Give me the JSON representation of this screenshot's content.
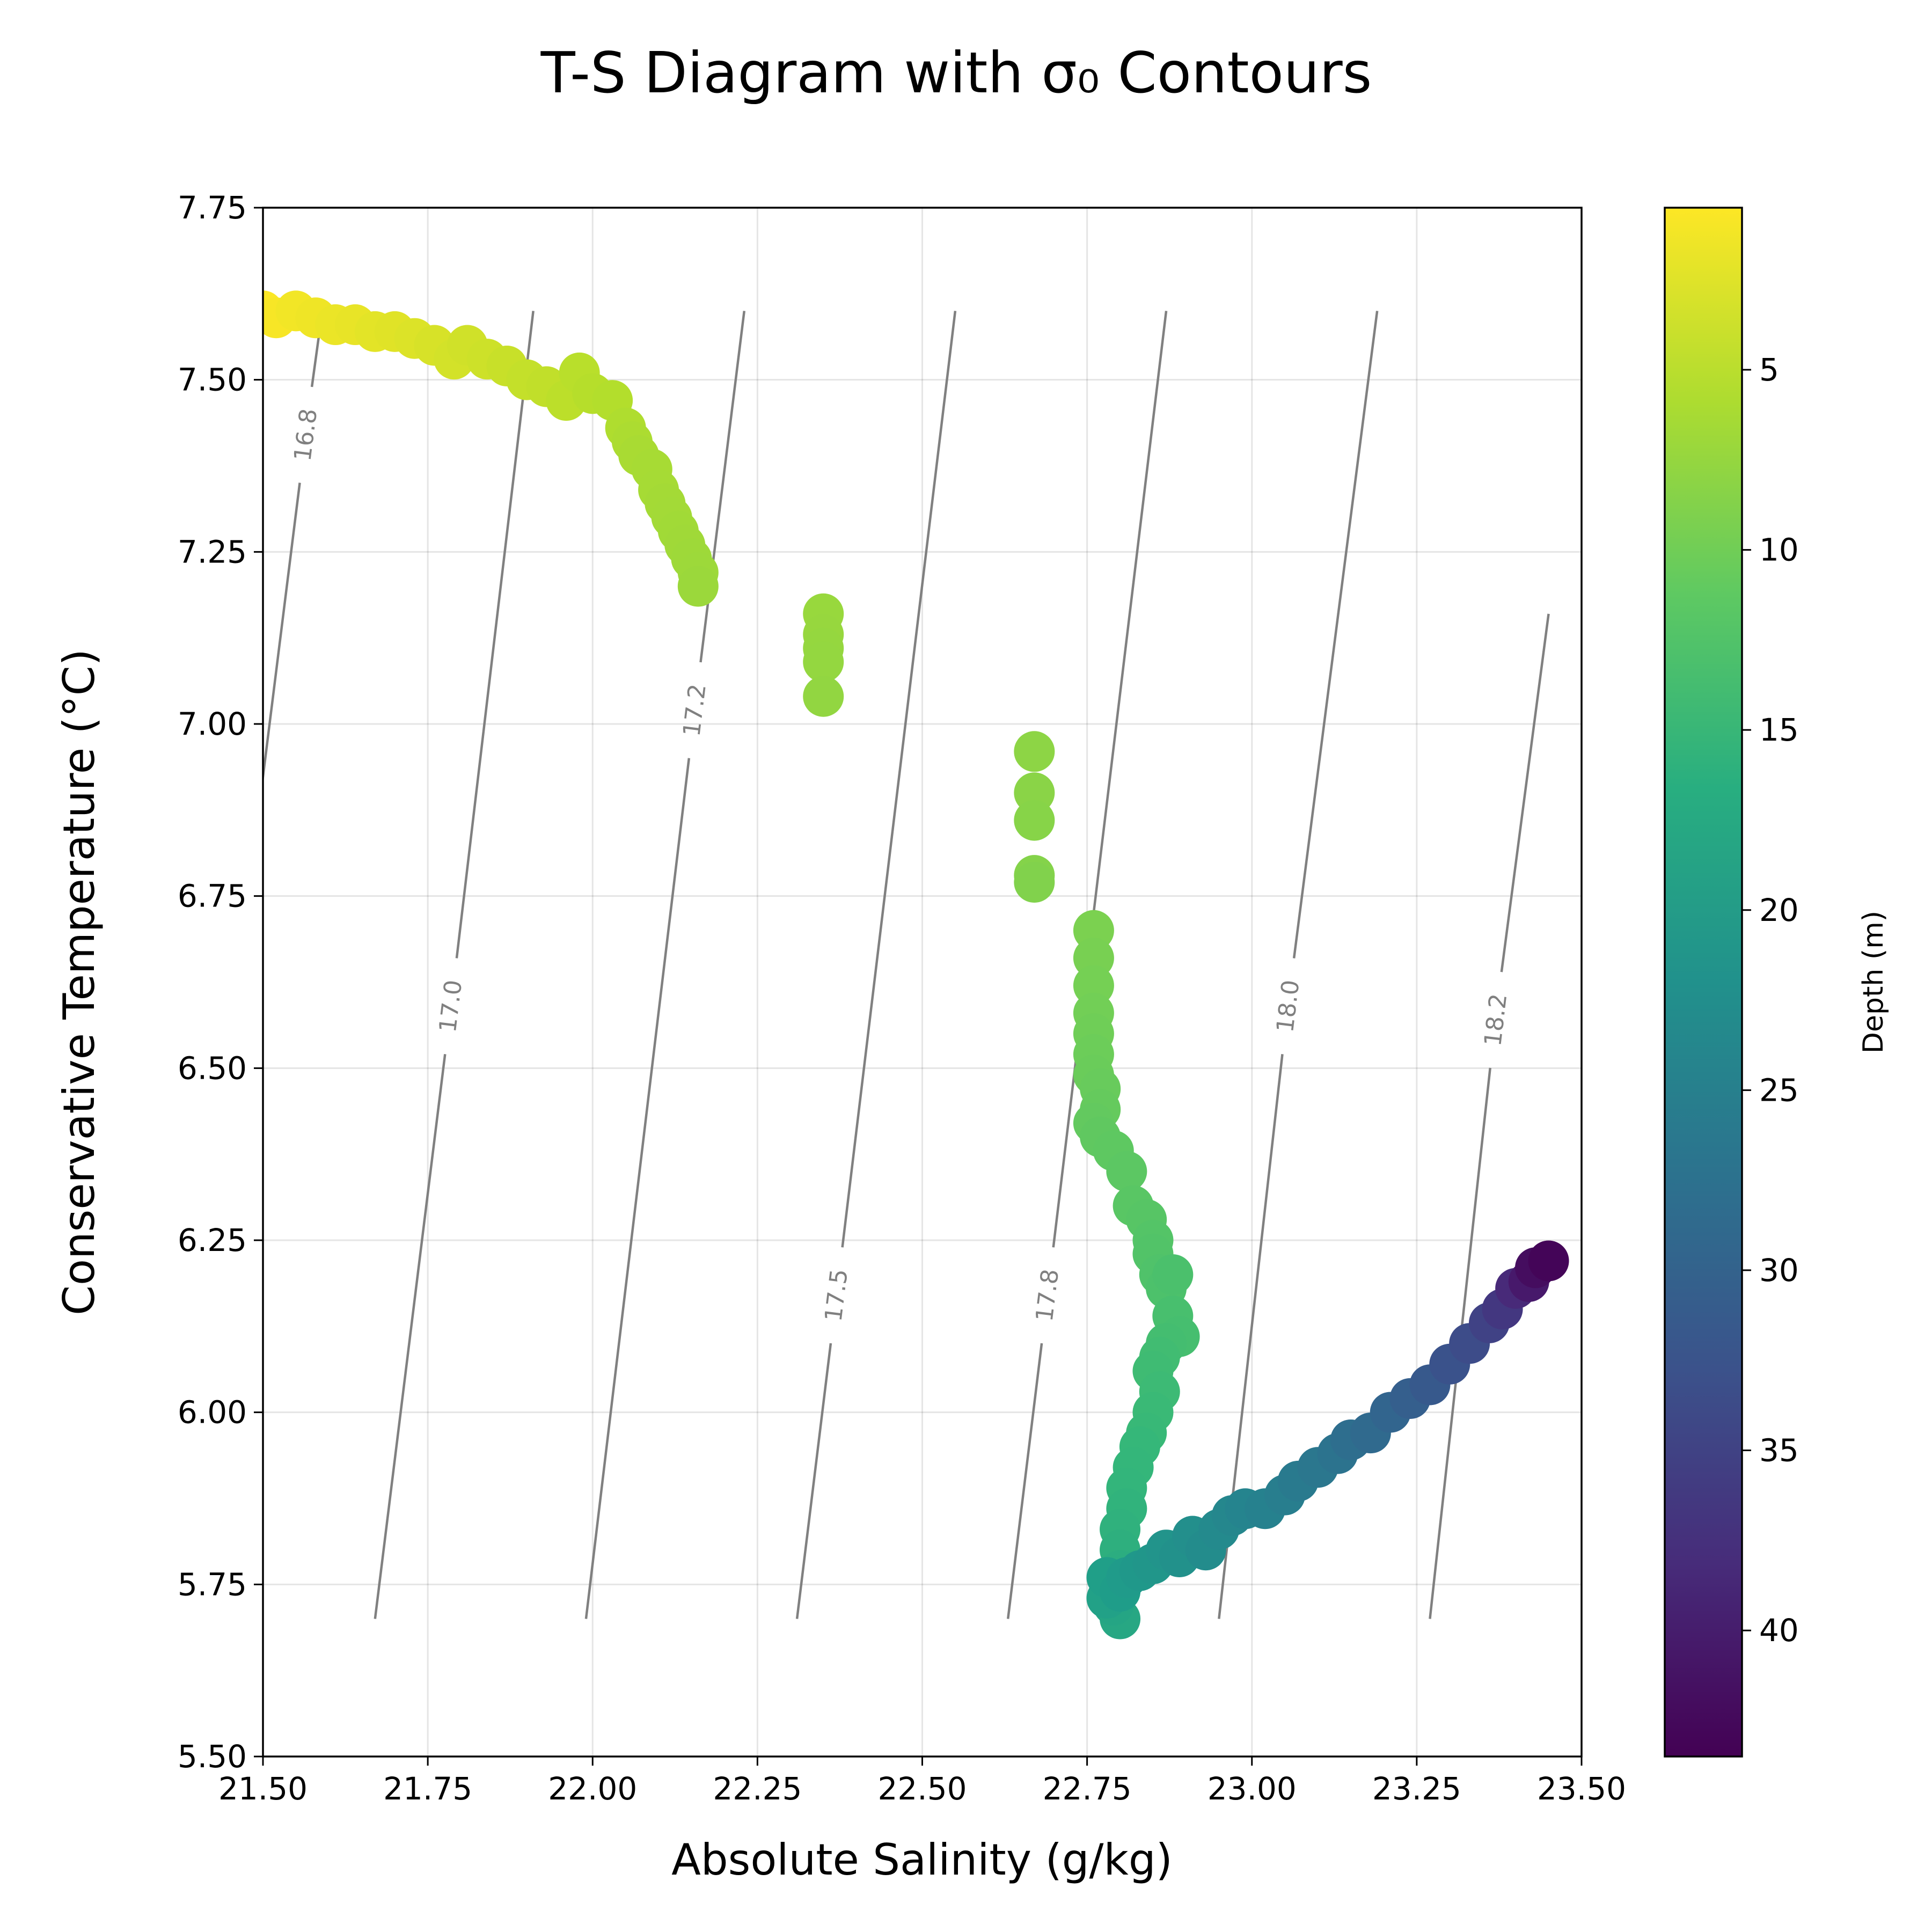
{
  "chart_data": {
    "type": "scatter",
    "title": "T-S Diagram with σ₀ Contours",
    "xlabel": "Absolute Salinity (g/kg)",
    "ylabel": "Conservative Temperature (°C)",
    "xlim": [
      21.5,
      23.5
    ],
    "ylim": [
      5.5,
      7.75
    ],
    "xticks": [
      21.5,
      21.75,
      22.0,
      22.25,
      22.5,
      22.75,
      23.0,
      23.25,
      23.5
    ],
    "yticks": [
      5.5,
      5.75,
      6.0,
      6.25,
      6.5,
      6.75,
      7.0,
      7.25,
      7.5,
      7.75
    ],
    "xtick_labels": [
      "21.50",
      "21.75",
      "22.00",
      "22.25",
      "22.50",
      "22.75",
      "23.00",
      "23.25",
      "23.50"
    ],
    "ytick_labels": [
      "5.50",
      "5.75",
      "6.00",
      "6.25",
      "6.50",
      "6.75",
      "7.00",
      "7.25",
      "7.50",
      "7.75"
    ],
    "grid": true,
    "colorbar": {
      "label": "Depth (m)",
      "colormap": "viridis",
      "reversed_axis": true,
      "range": [
        0.5,
        43.5
      ],
      "ticks": [
        5,
        10,
        15,
        20,
        25,
        30,
        35,
        40
      ],
      "tick_labels": [
        "5",
        "10",
        "15",
        "20",
        "25",
        "30",
        "35",
        "40"
      ]
    },
    "contours": {
      "color": "#808080",
      "lines": [
        {
          "label": "16.8",
          "s_bottom": 21.34,
          "s_top": 21.59,
          "t_bottom": 5.7,
          "t_top": 7.6,
          "label_s": 21.565,
          "label_t": 7.42
        },
        {
          "label": "17.0",
          "s_bottom": 21.67,
          "s_top": 21.91,
          "t_bottom": 5.7,
          "t_top": 7.6,
          "label_s": 21.785,
          "label_t": 6.59
        },
        {
          "label": "17.2",
          "s_bottom": 21.99,
          "s_top": 22.23,
          "t_bottom": 5.7,
          "t_top": 7.6,
          "label_s": 22.155,
          "label_t": 7.02
        },
        {
          "label": "17.5",
          "s_bottom": 22.31,
          "s_top": 22.55,
          "t_bottom": 5.7,
          "t_top": 7.6,
          "label_s": 22.37,
          "label_t": 6.17
        },
        {
          "label": "17.8",
          "s_bottom": 22.63,
          "s_top": 22.87,
          "t_bottom": 5.7,
          "t_top": 7.6,
          "label_s": 22.69,
          "label_t": 6.17
        },
        {
          "label": "18.0",
          "s_bottom": 22.95,
          "s_top": 23.19,
          "t_bottom": 5.7,
          "t_top": 7.6,
          "label_s": 23.055,
          "label_t": 6.59
        },
        {
          "label": "18.2",
          "s_bottom": 23.27,
          "s_top": 23.45,
          "t_bottom": 5.7,
          "t_top": 7.16,
          "label_s": 23.37,
          "label_t": 6.57
        }
      ]
    },
    "series": [
      {
        "x": [
          21.5,
          21.52,
          21.55,
          21.58,
          21.61,
          21.64,
          21.67,
          21.7,
          21.73,
          21.76,
          21.79,
          21.81,
          21.84,
          21.87,
          21.9,
          21.93,
          21.96,
          21.98,
          22.0,
          22.03,
          22.05,
          22.06,
          22.07,
          22.09,
          22.1,
          22.11,
          22.12,
          22.13,
          22.14,
          22.15,
          22.16,
          22.16,
          22.35,
          22.35,
          22.35,
          22.35,
          22.35,
          22.67,
          22.67,
          22.67,
          22.67,
          22.67,
          22.76,
          22.76,
          22.76,
          22.76,
          22.76,
          22.76,
          22.76,
          22.77,
          22.77,
          22.76,
          22.77,
          22.79,
          22.81,
          22.82,
          22.84,
          22.85,
          22.85,
          22.86,
          22.87,
          22.88,
          22.88,
          22.89,
          22.87,
          22.86,
          22.85,
          22.86,
          22.85,
          22.84,
          22.83,
          22.82,
          22.81,
          22.81,
          22.8,
          22.8,
          22.8,
          22.8,
          22.8,
          22.79,
          22.79,
          22.78,
          22.78,
          22.8,
          22.81,
          22.83,
          22.85,
          22.87,
          22.89,
          22.91,
          22.93,
          22.95,
          22.97,
          22.99,
          23.02,
          23.05,
          23.07,
          23.1,
          23.13,
          23.15,
          23.18,
          23.21,
          23.24,
          23.27,
          23.3,
          23.33,
          23.36,
          23.38,
          23.4,
          23.42,
          23.43,
          23.45
        ],
        "y": [
          7.6,
          7.59,
          7.6,
          7.59,
          7.58,
          7.58,
          7.57,
          7.57,
          7.56,
          7.55,
          7.53,
          7.55,
          7.53,
          7.52,
          7.5,
          7.49,
          7.47,
          7.51,
          7.48,
          7.47,
          7.43,
          7.41,
          7.39,
          7.37,
          7.34,
          7.32,
          7.3,
          7.28,
          7.26,
          7.24,
          7.22,
          7.2,
          7.16,
          7.13,
          7.11,
          7.09,
          7.04,
          6.96,
          6.9,
          6.86,
          6.78,
          6.77,
          6.7,
          6.66,
          6.62,
          6.58,
          6.55,
          6.52,
          6.49,
          6.47,
          6.44,
          6.42,
          6.4,
          6.38,
          6.35,
          6.3,
          6.28,
          6.25,
          6.23,
          6.2,
          6.18,
          6.2,
          6.14,
          6.11,
          6.1,
          6.08,
          6.06,
          6.03,
          6.0,
          5.97,
          5.95,
          5.92,
          5.89,
          5.86,
          5.83,
          5.8,
          5.77,
          5.74,
          5.7,
          5.72,
          5.75,
          5.73,
          5.76,
          5.74,
          5.76,
          5.77,
          5.78,
          5.8,
          5.79,
          5.82,
          5.8,
          5.83,
          5.85,
          5.86,
          5.86,
          5.88,
          5.9,
          5.92,
          5.94,
          5.96,
          5.97,
          6.0,
          6.02,
          6.04,
          6.07,
          6.1,
          6.13,
          6.15,
          6.18,
          6.19,
          6.21,
          6.22
        ],
        "depth": [
          0.6,
          0.9,
          1.2,
          1.4,
          1.7,
          1.9,
          2.2,
          2.4,
          2.7,
          3.0,
          3.3,
          3.5,
          3.7,
          4.0,
          4.3,
          4.5,
          4.8,
          5.0,
          5.2,
          5.4,
          5.7,
          5.9,
          6.1,
          6.2,
          6.3,
          6.4,
          6.5,
          6.6,
          6.7,
          6.8,
          6.9,
          7.0,
          7.2,
          7.3,
          7.4,
          7.5,
          7.6,
          8.0,
          8.2,
          8.4,
          8.6,
          8.8,
          9.2,
          9.4,
          9.6,
          9.8,
          10.0,
          10.2,
          10.4,
          10.6,
          10.8,
          11.0,
          11.2,
          11.4,
          11.6,
          11.8,
          12.0,
          12.2,
          12.4,
          12.6,
          12.8,
          13.0,
          13.2,
          13.4,
          13.6,
          13.8,
          14.0,
          14.2,
          14.4,
          14.6,
          14.8,
          15.0,
          15.3,
          15.6,
          16.0,
          16.4,
          16.8,
          17.2,
          17.8,
          18.2,
          18.6,
          19.0,
          19.4,
          19.8,
          20.2,
          20.6,
          21.0,
          21.4,
          21.8,
          22.2,
          22.6,
          23.0,
          23.5,
          24.0,
          24.6,
          25.2,
          25.8,
          26.5,
          27.2,
          28.0,
          28.8,
          29.6,
          30.5,
          31.5,
          32.5,
          33.5,
          35.0,
          36.5,
          38.5,
          40.5,
          42.0,
          43.0
        ]
      }
    ]
  }
}
